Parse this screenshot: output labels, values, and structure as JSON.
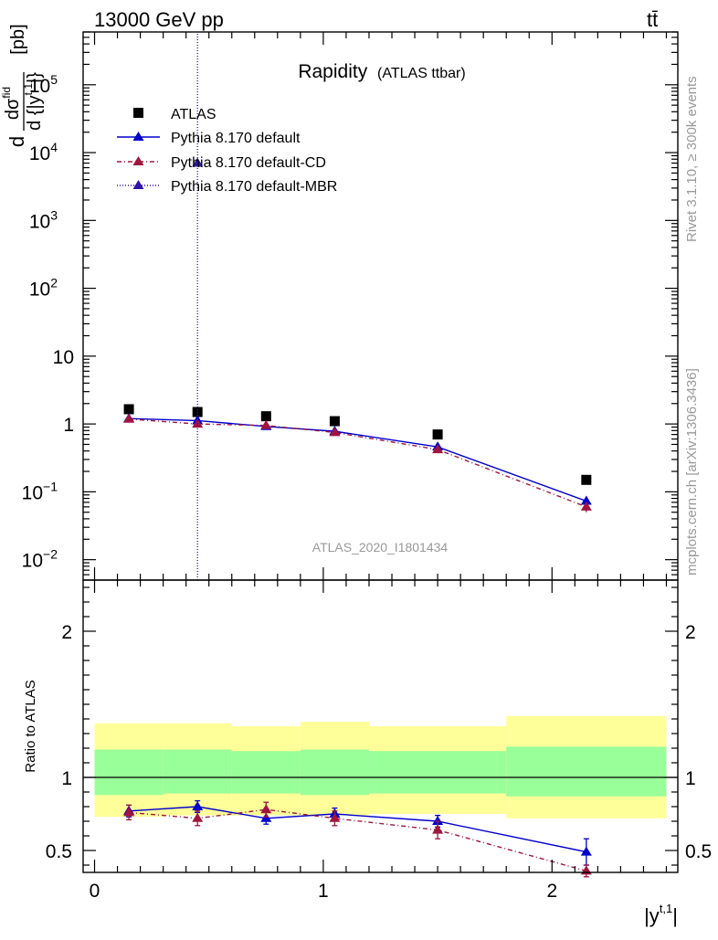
{
  "header": {
    "energy_label": "13000 GeV pp",
    "process_label": "tt̄"
  },
  "side_labels": {
    "rivet": "Rivet 3.1.10, ≥ 300k events",
    "mcplots": "mcplots.cern.ch [arXiv:1306.3436]"
  },
  "colors": {
    "data": "#000000",
    "default": "#0000cc",
    "cd": "#a0153e",
    "mbr": "#3311aa",
    "band_inner": "#99ff99",
    "band_outer": "#ffff99",
    "watermark": "#999999"
  },
  "chart_data": [
    {
      "type": "scatter",
      "title": "Rapidity",
      "subtitle": "(ATLAS ttbar)",
      "watermark": "ATLAS_2020_I1801434",
      "ylabel": "dσfid/d{|yt,1|} [pb]",
      "ylabel_parts": {
        "d": "d",
        "num": "dσ",
        "num_sup": "fid",
        "den": "d {|y",
        "den_sup": "t,1",
        "den_end": "|}",
        "unit": "[pb]"
      },
      "yscale": "log",
      "ylim": [
        0.005,
        600000
      ],
      "xlim": [
        -0.05,
        2.55
      ],
      "y_ticks": [
        {
          "value": 0.01,
          "label": "10",
          "sup": "−2"
        },
        {
          "value": 0.1,
          "label": "10",
          "sup": "−1"
        },
        {
          "value": 1,
          "label": "1",
          "sup": ""
        },
        {
          "value": 10,
          "label": "10",
          "sup": ""
        },
        {
          "value": 100,
          "label": "10",
          "sup": "2"
        },
        {
          "value": 1000,
          "label": "10",
          "sup": "3"
        },
        {
          "value": 10000,
          "label": "10",
          "sup": "4"
        },
        {
          "value": 100000,
          "label": "10",
          "sup": "5"
        }
      ],
      "legend": [
        {
          "key": "atlas",
          "label": "ATLAS"
        },
        {
          "key": "default",
          "label": "Pythia 8.170 default"
        },
        {
          "key": "cd",
          "label": "Pythia 8.170 default-CD"
        },
        {
          "key": "mbr",
          "label": "Pythia 8.170 default-MBR"
        }
      ],
      "series": [
        {
          "name": "ATLAS",
          "key": "atlas",
          "x": [
            0.15,
            0.45,
            0.75,
            1.05,
            1.5,
            2.15
          ],
          "values": [
            1.65,
            1.5,
            1.3,
            1.1,
            0.7,
            0.15
          ]
        },
        {
          "name": "Pythia 8.170 default",
          "key": "default",
          "x": [
            0.15,
            0.45,
            0.75,
            1.05,
            1.5,
            2.15
          ],
          "values": [
            1.2,
            1.12,
            0.92,
            0.78,
            0.46,
            0.073
          ],
          "errors": [
            0.05,
            0.05,
            0.04,
            0.04,
            0.03,
            0.012
          ]
        },
        {
          "name": "Pythia 8.170 default-CD",
          "key": "cd",
          "x": [
            0.15,
            0.45,
            0.75,
            1.05,
            1.5,
            2.15
          ],
          "values": [
            1.18,
            1.0,
            0.95,
            0.75,
            0.42,
            0.06
          ],
          "errors": [
            0.05,
            0.05,
            0.05,
            0.04,
            0.03,
            0.01
          ]
        },
        {
          "name": "Pythia 8.170 default-MBR",
          "key": "mbr",
          "x": [
            0.45
          ],
          "values": [
            7000
          ],
          "spike_to": 600000
        }
      ]
    },
    {
      "type": "line",
      "ylabel": "Ratio to ATLAS",
      "xlabel": "|yt,1|",
      "xlabel_parts": {
        "base": "|y",
        "sup": "t,1",
        "end": "|"
      },
      "xlim": [
        -0.05,
        2.55
      ],
      "ylim": [
        0.35,
        2.35
      ],
      "x_ticks": [
        0,
        1,
        2
      ],
      "y_ticks": [
        0.5,
        1,
        2
      ],
      "reference": 1,
      "bands": [
        {
          "x_range": [
            0.0,
            0.3
          ],
          "inner": [
            0.88,
            1.19
          ],
          "outer": [
            0.73,
            1.37
          ]
        },
        {
          "x_range": [
            0.3,
            0.6
          ],
          "inner": [
            0.89,
            1.19
          ],
          "outer": [
            0.74,
            1.37
          ]
        },
        {
          "x_range": [
            0.6,
            0.9
          ],
          "inner": [
            0.89,
            1.18
          ],
          "outer": [
            0.74,
            1.35
          ]
        },
        {
          "x_range": [
            0.9,
            1.2
          ],
          "inner": [
            0.88,
            1.19
          ],
          "outer": [
            0.74,
            1.38
          ]
        },
        {
          "x_range": [
            1.2,
            1.8
          ],
          "inner": [
            0.89,
            1.18
          ],
          "outer": [
            0.75,
            1.35
          ]
        },
        {
          "x_range": [
            1.8,
            2.5
          ],
          "inner": [
            0.87,
            1.21
          ],
          "outer": [
            0.72,
            1.42
          ]
        }
      ],
      "series": [
        {
          "name": "Pythia 8.170 default",
          "key": "default",
          "x": [
            0.15,
            0.45,
            0.75,
            1.05,
            1.5,
            2.15
          ],
          "values": [
            0.77,
            0.8,
            0.72,
            0.75,
            0.7,
            0.49
          ],
          "errors": [
            0.04,
            0.04,
            0.04,
            0.04,
            0.04,
            0.09
          ]
        },
        {
          "name": "Pythia 8.170 default-CD",
          "key": "cd",
          "x": [
            0.15,
            0.45,
            0.75,
            1.05,
            1.5,
            2.15
          ],
          "values": [
            0.76,
            0.72,
            0.78,
            0.72,
            0.64,
            0.36
          ],
          "errors": [
            0.05,
            0.05,
            0.05,
            0.05,
            0.06,
            0.04
          ]
        }
      ]
    }
  ]
}
